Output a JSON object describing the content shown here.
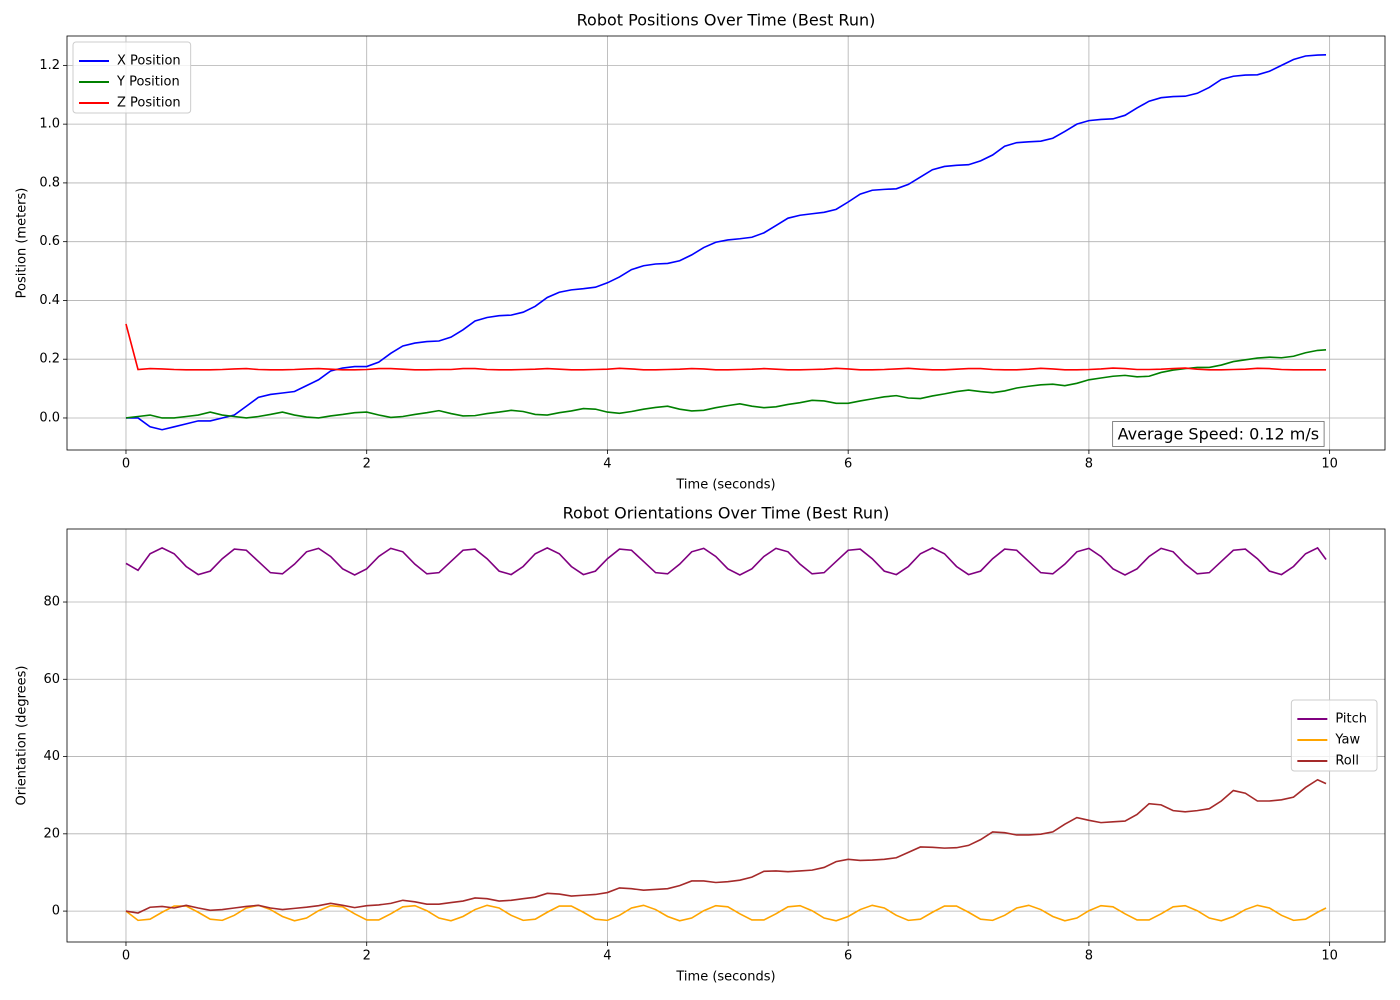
{
  "chart_data": [
    {
      "type": "line",
      "title": "Robot Positions Over Time (Best Run)",
      "xlabel": "Time (seconds)",
      "ylabel": "Position (meters)",
      "annotation": "Average Speed: 0.12 m/s",
      "grid": true,
      "legend": "upper left",
      "xlim": [
        -0.49,
        10.46
      ],
      "ylim": [
        -0.109,
        1.3
      ],
      "xticks": [
        0,
        2,
        4,
        6,
        8,
        10
      ],
      "yticks": [
        {
          "value": 0,
          "label": "0.0"
        },
        0.2,
        0.4,
        0.6,
        0.8,
        {
          "value": 1,
          "label": "1.0"
        },
        1.2
      ],
      "x": [
        0,
        0.1,
        0.2,
        0.3,
        0.4,
        0.5,
        0.6,
        0.7,
        0.8,
        0.9,
        1,
        1.1,
        1.2,
        1.3,
        1.4,
        1.5,
        1.6,
        1.7,
        1.8,
        1.9,
        2,
        2.1,
        2.2,
        2.3,
        2.4,
        2.5,
        2.6,
        2.7,
        2.8,
        2.9,
        3,
        3.1,
        3.2,
        3.3,
        3.4,
        3.5,
        3.6,
        3.7,
        3.8,
        3.9,
        4,
        4.1,
        4.2,
        4.3,
        4.4,
        4.5,
        4.6,
        4.7,
        4.8,
        4.9,
        5,
        5.1,
        5.2,
        5.3,
        5.4,
        5.5,
        5.6,
        5.7,
        5.8,
        5.9,
        6,
        6.1,
        6.2,
        6.3,
        6.4,
        6.5,
        6.6,
        6.7,
        6.8,
        6.9,
        7,
        7.1,
        7.2,
        7.3,
        7.4,
        7.5,
        7.6,
        7.7,
        7.8,
        7.9,
        8,
        8.1,
        8.2,
        8.3,
        8.4,
        8.5,
        8.6,
        8.7,
        8.8,
        8.9,
        9,
        9.1,
        9.2,
        9.3,
        9.4,
        9.5,
        9.6,
        9.7,
        9.8,
        9.9,
        9.97
      ],
      "series": [
        {
          "name": "X Position",
          "color": "#0000ff",
          "values": [
            0,
            0,
            -0.03,
            -0.04,
            -0.03,
            -0.02,
            -0.01,
            -0.01,
            0,
            0.01,
            0.04,
            0.07,
            0.08,
            0.085,
            0.09,
            0.11,
            0.13,
            0.16,
            0.17,
            0.175,
            0.175,
            0.19,
            0.22,
            0.245,
            0.255,
            0.26,
            0.262,
            0.275,
            0.3,
            0.33,
            0.342,
            0.348,
            0.35,
            0.36,
            0.38,
            0.41,
            0.428,
            0.436,
            0.44,
            0.445,
            0.46,
            0.48,
            0.505,
            0.518,
            0.524,
            0.526,
            0.535,
            0.555,
            0.58,
            0.598,
            0.606,
            0.61,
            0.615,
            0.63,
            0.655,
            0.68,
            0.69,
            0.695,
            0.7,
            0.71,
            0.735,
            0.762,
            0.775,
            0.778,
            0.78,
            0.795,
            0.82,
            0.845,
            0.856,
            0.86,
            0.862,
            0.875,
            0.895,
            0.925,
            0.937,
            0.94,
            0.942,
            0.952,
            0.975,
            1,
            1.012,
            1.016,
            1.018,
            1.03,
            1.055,
            1.078,
            1.09,
            1.094,
            1.095,
            1.105,
            1.125,
            1.152,
            1.163,
            1.167,
            1.168,
            1.18,
            1.2,
            1.22,
            1.232,
            1.235,
            1.236
          ]
        },
        {
          "name": "Y Position",
          "color": "#008000",
          "values": [
            0,
            0.005,
            0.01,
            0,
            0,
            0.005,
            0.01,
            0.02,
            0.01,
            0.005,
            0,
            0.005,
            0.012,
            0.02,
            0.01,
            0.003,
            0,
            0.007,
            0.012,
            0.018,
            0.02,
            0.01,
            0.002,
            0.005,
            0.012,
            0.018,
            0.025,
            0.015,
            0.007,
            0.008,
            0.015,
            0.02,
            0.026,
            0.022,
            0.012,
            0.01,
            0.018,
            0.024,
            0.032,
            0.03,
            0.02,
            0.016,
            0.022,
            0.03,
            0.036,
            0.04,
            0.03,
            0.024,
            0.026,
            0.035,
            0.042,
            0.048,
            0.04,
            0.035,
            0.038,
            0.046,
            0.052,
            0.06,
            0.058,
            0.05,
            0.05,
            0.058,
            0.065,
            0.072,
            0.076,
            0.068,
            0.066,
            0.075,
            0.082,
            0.09,
            0.095,
            0.09,
            0.086,
            0.092,
            0.102,
            0.108,
            0.113,
            0.115,
            0.11,
            0.118,
            0.13,
            0.136,
            0.142,
            0.145,
            0.14,
            0.142,
            0.155,
            0.163,
            0.168,
            0.172,
            0.172,
            0.18,
            0.192,
            0.198,
            0.204,
            0.207,
            0.205,
            0.21,
            0.222,
            0.23,
            0.232
          ]
        },
        {
          "name": "Z Position",
          "color": "#ff0000",
          "values": [
            0.32,
            0.165,
            0.168,
            0.167,
            0.165,
            0.164,
            0.164,
            0.164,
            0.165,
            0.167,
            0.168,
            0.165,
            0.164,
            0.164,
            0.165,
            0.167,
            0.168,
            0.166,
            0.164,
            0.164,
            0.165,
            0.168,
            0.168,
            0.166,
            0.164,
            0.164,
            0.165,
            0.165,
            0.168,
            0.168,
            0.165,
            0.164,
            0.164,
            0.165,
            0.166,
            0.168,
            0.166,
            0.164,
            0.164,
            0.165,
            0.166,
            0.169,
            0.167,
            0.164,
            0.164,
            0.165,
            0.166,
            0.168,
            0.167,
            0.164,
            0.164,
            0.165,
            0.166,
            0.168,
            0.166,
            0.164,
            0.164,
            0.165,
            0.166,
            0.169,
            0.167,
            0.164,
            0.164,
            0.165,
            0.167,
            0.169,
            0.166,
            0.164,
            0.164,
            0.166,
            0.168,
            0.168,
            0.165,
            0.164,
            0.164,
            0.166,
            0.169,
            0.167,
            0.164,
            0.164,
            0.165,
            0.167,
            0.17,
            0.168,
            0.165,
            0.165,
            0.166,
            0.168,
            0.17,
            0.166,
            0.164,
            0.164,
            0.165,
            0.166,
            0.169,
            0.168,
            0.165,
            0.164,
            0.164,
            0.164,
            0.164
          ]
        }
      ]
    },
    {
      "type": "line",
      "title": "Robot Orientations Over Time (Best Run)",
      "xlabel": "Time (seconds)",
      "ylabel": "Orientation (degrees)",
      "grid": true,
      "legend": "center right",
      "xlim": [
        -0.49,
        10.46
      ],
      "ylim": [
        -8,
        98.9
      ],
      "xticks": [
        0,
        2,
        4,
        6,
        8,
        10
      ],
      "yticks": [
        0,
        20,
        40,
        60,
        80
      ],
      "x": [
        0,
        0.1,
        0.2,
        0.3,
        0.4,
        0.5,
        0.6,
        0.7,
        0.8,
        0.9,
        1,
        1.1,
        1.2,
        1.3,
        1.4,
        1.5,
        1.6,
        1.7,
        1.8,
        1.9,
        2,
        2.1,
        2.2,
        2.3,
        2.4,
        2.5,
        2.6,
        2.7,
        2.8,
        2.9,
        3,
        3.1,
        3.2,
        3.3,
        3.4,
        3.5,
        3.6,
        3.7,
        3.8,
        3.9,
        4,
        4.1,
        4.2,
        4.3,
        4.4,
        4.5,
        4.6,
        4.7,
        4.8,
        4.9,
        5,
        5.1,
        5.2,
        5.3,
        5.4,
        5.5,
        5.6,
        5.7,
        5.8,
        5.9,
        6,
        6.1,
        6.2,
        6.3,
        6.4,
        6.5,
        6.6,
        6.7,
        6.8,
        6.9,
        7,
        7.1,
        7.2,
        7.3,
        7.4,
        7.5,
        7.6,
        7.7,
        7.8,
        7.9,
        8,
        8.1,
        8.2,
        8.3,
        8.4,
        8.5,
        8.6,
        8.7,
        8.8,
        8.9,
        9,
        9.1,
        9.2,
        9.3,
        9.4,
        9.5,
        9.6,
        9.7,
        9.8,
        9.9,
        9.97
      ],
      "series": [
        {
          "name": "Pitch",
          "color": "#800080",
          "values": [
            90,
            88.2,
            92.5,
            94,
            92.5,
            89.2,
            87.1,
            88,
            91.2,
            93.7,
            93.4,
            90.5,
            87.6,
            87.3,
            89.8,
            93,
            93.9,
            91.8,
            88.6,
            87,
            88.6,
            91.8,
            93.9,
            93,
            89.8,
            87.3,
            87.6,
            90.5,
            93.4,
            93.7,
            91.2,
            88,
            87.1,
            89.2,
            92.5,
            94,
            92.5,
            89.2,
            87.1,
            88,
            91.2,
            93.7,
            93.4,
            90.5,
            87.6,
            87.3,
            89.8,
            93,
            93.9,
            91.8,
            88.6,
            87,
            88.6,
            91.8,
            93.9,
            93,
            89.8,
            87.3,
            87.6,
            90.5,
            93.4,
            93.7,
            91.2,
            88,
            87.1,
            89.2,
            92.5,
            94,
            92.5,
            89.2,
            87.1,
            88,
            91.2,
            93.7,
            93.4,
            90.5,
            87.6,
            87.3,
            89.8,
            93,
            93.9,
            91.8,
            88.6,
            87,
            88.6,
            91.8,
            93.9,
            93,
            89.8,
            87.3,
            87.6,
            90.5,
            93.4,
            93.7,
            91.2,
            88,
            87.1,
            89.2,
            92.5,
            94,
            91
          ]
        },
        {
          "name": "Yaw",
          "color": "#ffa500",
          "values": [
            0,
            -2.4,
            -2.1,
            -0.3,
            1.3,
            1.3,
            -0.3,
            -2.1,
            -2.4,
            -1.1,
            0.8,
            1.5,
            0.4,
            -1.4,
            -2.5,
            -1.8,
            0.1,
            1.4,
            1.1,
            -0.7,
            -2.3,
            -2.3,
            -0.7,
            1.1,
            1.4,
            0.1,
            -1.8,
            -2.5,
            -1.4,
            0.4,
            1.5,
            0.8,
            -1.1,
            -2.4,
            -2.1,
            -0.3,
            1.3,
            1.3,
            -0.3,
            -2.1,
            -2.4,
            -1.1,
            0.8,
            1.5,
            0.4,
            -1.4,
            -2.5,
            -1.8,
            0.1,
            1.4,
            1.1,
            -0.7,
            -2.3,
            -2.3,
            -0.7,
            1.1,
            1.4,
            0.1,
            -1.8,
            -2.5,
            -1.4,
            0.4,
            1.5,
            0.8,
            -1.1,
            -2.4,
            -2.1,
            -0.3,
            1.3,
            1.3,
            -0.3,
            -2.1,
            -2.4,
            -1.1,
            0.8,
            1.5,
            0.4,
            -1.4,
            -2.5,
            -1.8,
            0.1,
            1.4,
            1.1,
            -0.7,
            -2.3,
            -2.3,
            -0.7,
            1.1,
            1.4,
            0.1,
            -1.8,
            -2.5,
            -1.4,
            0.4,
            1.5,
            0.8,
            -1.1,
            -2.4,
            -2.1,
            -0.3,
            0.8
          ]
        },
        {
          "name": "Roll",
          "color": "#a52a2a",
          "values": [
            0,
            -0.5,
            1,
            1.2,
            0.8,
            1.5,
            0.8,
            0.2,
            0.4,
            0.8,
            1.2,
            1.5,
            0.8,
            0.4,
            0.7,
            1,
            1.4,
            2,
            1.5,
            0.9,
            1.4,
            1.6,
            2,
            2.8,
            2.4,
            1.8,
            1.8,
            2.2,
            2.6,
            3.4,
            3.2,
            2.6,
            2.8,
            3.2,
            3.6,
            4.6,
            4.4,
            3.9,
            4.1,
            4.3,
            4.8,
            6,
            5.8,
            5.4,
            5.6,
            5.8,
            6.6,
            7.8,
            7.8,
            7.4,
            7.6,
            8,
            8.8,
            10.3,
            10.4,
            10.2,
            10.4,
            10.6,
            11.3,
            12.8,
            13.4,
            13.1,
            13.2,
            13.4,
            13.8,
            15.2,
            16.6,
            16.5,
            16.3,
            16.4,
            17,
            18.5,
            20.5,
            20.3,
            19.7,
            19.7,
            19.9,
            20.5,
            22.5,
            24.2,
            23.5,
            22.9,
            23.1,
            23.3,
            25,
            27.8,
            27.5,
            26,
            25.7,
            26,
            26.5,
            28.5,
            31.2,
            30.5,
            28.5,
            28.5,
            28.8,
            29.5,
            32,
            34,
            33
          ]
        }
      ]
    }
  ]
}
